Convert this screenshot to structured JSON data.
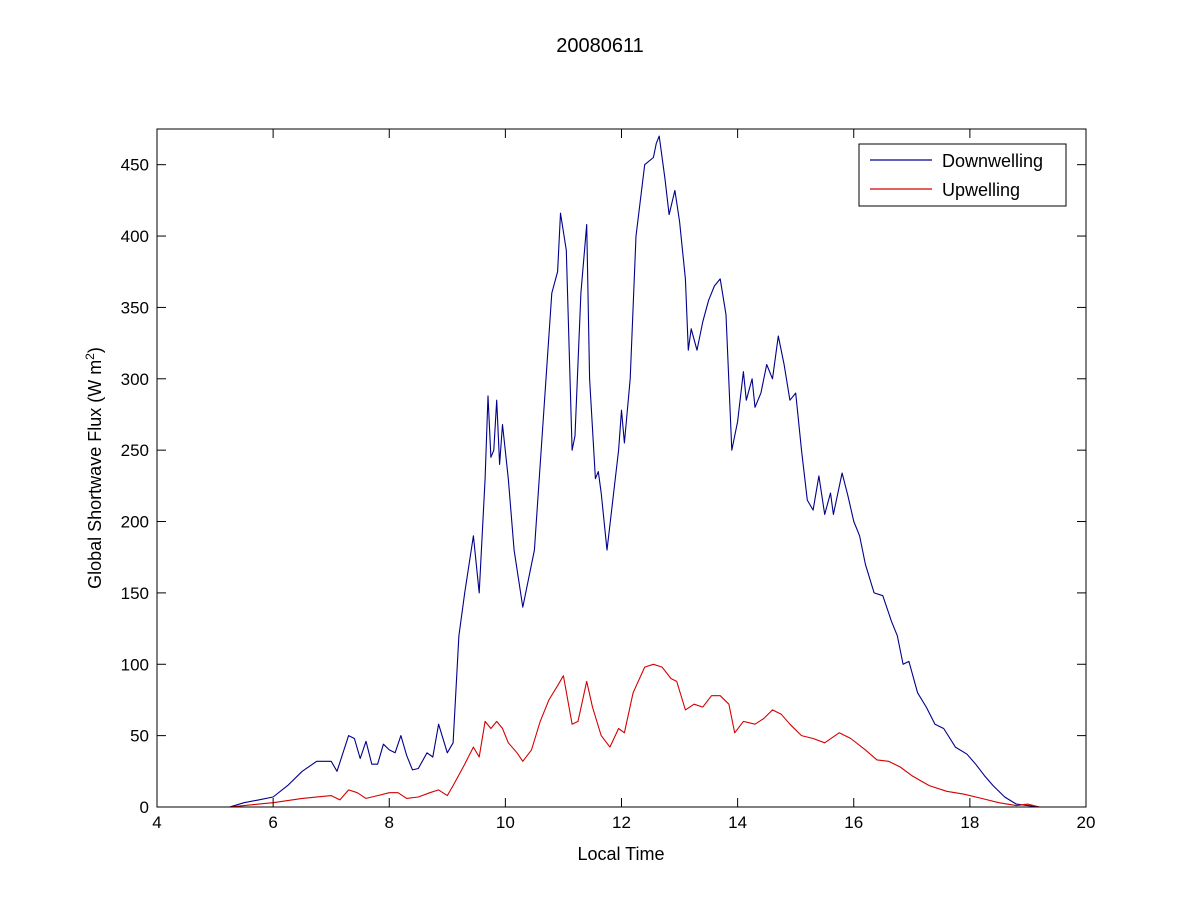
{
  "chart_data": {
    "type": "line",
    "title": "20080611",
    "xlabel": "Local Time",
    "ylabel": "Global Shortwave Flux (W m",
    "ylabel_sup": "2",
    "ylabel_close": ")",
    "xlim": [
      4,
      20
    ],
    "ylim": [
      0,
      475
    ],
    "xticks": [
      4,
      6,
      8,
      10,
      12,
      14,
      16,
      18,
      20
    ],
    "yticks": [
      0,
      50,
      100,
      150,
      200,
      250,
      300,
      350,
      400,
      450
    ],
    "grid": false,
    "legend_position": "top-right",
    "series": [
      {
        "name": "Downwelling",
        "color": "#00008b",
        "points": [
          [
            5.25,
            0
          ],
          [
            5.5,
            3
          ],
          [
            5.75,
            5
          ],
          [
            6.0,
            7
          ],
          [
            6.25,
            15
          ],
          [
            6.5,
            25
          ],
          [
            6.75,
            32
          ],
          [
            7.0,
            32
          ],
          [
            7.1,
            25
          ],
          [
            7.3,
            50
          ],
          [
            7.4,
            48
          ],
          [
            7.5,
            34
          ],
          [
            7.6,
            46
          ],
          [
            7.7,
            30
          ],
          [
            7.8,
            30
          ],
          [
            7.9,
            44
          ],
          [
            8.0,
            40
          ],
          [
            8.1,
            38
          ],
          [
            8.2,
            50
          ],
          [
            8.3,
            36
          ],
          [
            8.4,
            26
          ],
          [
            8.5,
            27
          ],
          [
            8.65,
            38
          ],
          [
            8.75,
            35
          ],
          [
            8.85,
            58
          ],
          [
            9.0,
            38
          ],
          [
            9.1,
            45
          ],
          [
            9.2,
            120
          ],
          [
            9.3,
            150
          ],
          [
            9.45,
            190
          ],
          [
            9.55,
            150
          ],
          [
            9.65,
            230
          ],
          [
            9.7,
            288
          ],
          [
            9.75,
            245
          ],
          [
            9.8,
            250
          ],
          [
            9.85,
            285
          ],
          [
            9.9,
            240
          ],
          [
            9.95,
            268
          ],
          [
            10.05,
            230
          ],
          [
            10.15,
            180
          ],
          [
            10.3,
            140
          ],
          [
            10.4,
            160
          ],
          [
            10.5,
            180
          ],
          [
            10.6,
            240
          ],
          [
            10.7,
            300
          ],
          [
            10.8,
            360
          ],
          [
            10.9,
            375
          ],
          [
            10.95,
            416
          ],
          [
            11.05,
            390
          ],
          [
            11.15,
            250
          ],
          [
            11.2,
            260
          ],
          [
            11.3,
            360
          ],
          [
            11.4,
            408
          ],
          [
            11.45,
            300
          ],
          [
            11.55,
            230
          ],
          [
            11.6,
            235
          ],
          [
            11.65,
            220
          ],
          [
            11.75,
            180
          ],
          [
            11.85,
            215
          ],
          [
            11.95,
            250
          ],
          [
            12.0,
            278
          ],
          [
            12.05,
            255
          ],
          [
            12.15,
            300
          ],
          [
            12.25,
            400
          ],
          [
            12.4,
            450
          ],
          [
            12.55,
            455
          ],
          [
            12.6,
            465
          ],
          [
            12.65,
            470
          ],
          [
            12.75,
            440
          ],
          [
            12.82,
            415
          ],
          [
            12.92,
            432
          ],
          [
            13.0,
            410
          ],
          [
            13.1,
            370
          ],
          [
            13.15,
            320
          ],
          [
            13.2,
            335
          ],
          [
            13.3,
            320
          ],
          [
            13.4,
            340
          ],
          [
            13.5,
            355
          ],
          [
            13.6,
            365
          ],
          [
            13.7,
            370
          ],
          [
            13.8,
            345
          ],
          [
            13.9,
            250
          ],
          [
            14.0,
            270
          ],
          [
            14.1,
            305
          ],
          [
            14.15,
            285
          ],
          [
            14.25,
            300
          ],
          [
            14.3,
            280
          ],
          [
            14.4,
            290
          ],
          [
            14.5,
            310
          ],
          [
            14.6,
            300
          ],
          [
            14.7,
            330
          ],
          [
            14.8,
            310
          ],
          [
            14.9,
            285
          ],
          [
            15.0,
            290
          ],
          [
            15.1,
            250
          ],
          [
            15.2,
            215
          ],
          [
            15.3,
            208
          ],
          [
            15.4,
            232
          ],
          [
            15.5,
            205
          ],
          [
            15.6,
            220
          ],
          [
            15.65,
            205
          ],
          [
            15.8,
            234
          ],
          [
            15.9,
            218
          ],
          [
            16.0,
            200
          ],
          [
            16.1,
            190
          ],
          [
            16.2,
            170
          ],
          [
            16.35,
            150
          ],
          [
            16.5,
            148
          ],
          [
            16.65,
            130
          ],
          [
            16.75,
            120
          ],
          [
            16.85,
            100
          ],
          [
            16.95,
            102
          ],
          [
            17.1,
            80
          ],
          [
            17.25,
            70
          ],
          [
            17.4,
            58
          ],
          [
            17.55,
            55
          ],
          [
            17.75,
            42
          ],
          [
            17.95,
            37
          ],
          [
            18.1,
            30
          ],
          [
            18.25,
            22
          ],
          [
            18.4,
            15
          ],
          [
            18.6,
            7
          ],
          [
            18.8,
            2
          ],
          [
            19.0,
            1
          ],
          [
            19.2,
            0
          ]
        ]
      },
      {
        "name": "Upwelling",
        "color": "#d40000",
        "points": [
          [
            5.25,
            0
          ],
          [
            5.5,
            1
          ],
          [
            5.75,
            2
          ],
          [
            6.0,
            3
          ],
          [
            6.5,
            6
          ],
          [
            7.0,
            8
          ],
          [
            7.15,
            5
          ],
          [
            7.3,
            12
          ],
          [
            7.45,
            10
          ],
          [
            7.6,
            6
          ],
          [
            7.8,
            8
          ],
          [
            8.0,
            10
          ],
          [
            8.15,
            10
          ],
          [
            8.3,
            6
          ],
          [
            8.5,
            7
          ],
          [
            8.7,
            10
          ],
          [
            8.85,
            12
          ],
          [
            9.0,
            8
          ],
          [
            9.1,
            15
          ],
          [
            9.3,
            30
          ],
          [
            9.45,
            42
          ],
          [
            9.55,
            35
          ],
          [
            9.65,
            60
          ],
          [
            9.75,
            55
          ],
          [
            9.85,
            60
          ],
          [
            9.95,
            55
          ],
          [
            10.05,
            45
          ],
          [
            10.2,
            38
          ],
          [
            10.3,
            32
          ],
          [
            10.45,
            40
          ],
          [
            10.6,
            60
          ],
          [
            10.75,
            75
          ],
          [
            10.9,
            85
          ],
          [
            11.0,
            92
          ],
          [
            11.15,
            58
          ],
          [
            11.25,
            60
          ],
          [
            11.4,
            88
          ],
          [
            11.5,
            70
          ],
          [
            11.65,
            50
          ],
          [
            11.8,
            42
          ],
          [
            11.95,
            55
          ],
          [
            12.05,
            52
          ],
          [
            12.2,
            80
          ],
          [
            12.4,
            98
          ],
          [
            12.55,
            100
          ],
          [
            12.7,
            98
          ],
          [
            12.85,
            90
          ],
          [
            12.95,
            88
          ],
          [
            13.1,
            68
          ],
          [
            13.25,
            72
          ],
          [
            13.4,
            70
          ],
          [
            13.55,
            78
          ],
          [
            13.7,
            78
          ],
          [
            13.85,
            72
          ],
          [
            13.95,
            52
          ],
          [
            14.1,
            60
          ],
          [
            14.3,
            58
          ],
          [
            14.45,
            62
          ],
          [
            14.6,
            68
          ],
          [
            14.75,
            65
          ],
          [
            14.9,
            58
          ],
          [
            15.1,
            50
          ],
          [
            15.3,
            48
          ],
          [
            15.5,
            45
          ],
          [
            15.75,
            52
          ],
          [
            15.95,
            48
          ],
          [
            16.2,
            40
          ],
          [
            16.4,
            33
          ],
          [
            16.6,
            32
          ],
          [
            16.8,
            28
          ],
          [
            17.0,
            22
          ],
          [
            17.3,
            15
          ],
          [
            17.6,
            11
          ],
          [
            17.9,
            9
          ],
          [
            18.2,
            6
          ],
          [
            18.5,
            3
          ],
          [
            18.8,
            1
          ],
          [
            19.0,
            2
          ],
          [
            19.2,
            0
          ]
        ]
      }
    ]
  }
}
